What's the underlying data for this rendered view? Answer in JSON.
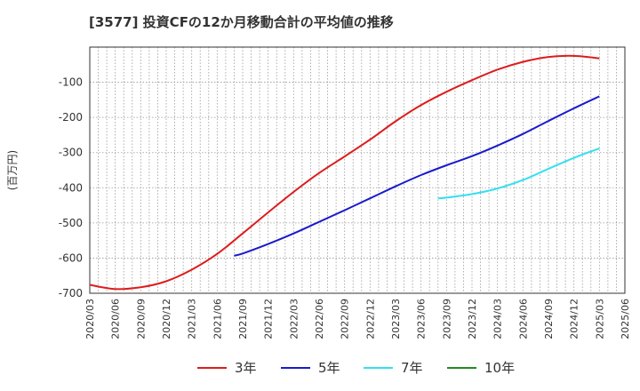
{
  "title": "[3577]  投資CFの12か月移動合計の平均値の推移",
  "chart_data": {
    "type": "line",
    "title": "[3577]  投資CFの12か月移動合計の平均値の推移",
    "ylabel": "(百万円)",
    "xlabel": "",
    "ylim": [
      -700,
      0
    ],
    "y_ticks": [
      -100,
      -200,
      -300,
      -400,
      -500,
      -600,
      -700
    ],
    "x_ticks": [
      "2020/03",
      "2020/06",
      "2020/09",
      "2020/12",
      "2021/03",
      "2021/06",
      "2021/09",
      "2021/12",
      "2022/03",
      "2022/06",
      "2022/09",
      "2022/12",
      "2023/03",
      "2023/06",
      "2023/09",
      "2023/12",
      "2024/03",
      "2024/06",
      "2024/09",
      "2024/12",
      "2025/03",
      "2025/06"
    ],
    "grid": true,
    "legend_position": "bottom",
    "series": [
      {
        "name": "3年",
        "color": "#dd1c1c",
        "x": [
          "2020/03",
          "2020/06",
          "2020/09",
          "2020/12",
          "2021/03",
          "2021/06",
          "2021/09",
          "2021/12",
          "2022/03",
          "2022/06",
          "2022/09",
          "2022/12",
          "2023/03",
          "2023/06",
          "2023/09",
          "2023/12",
          "2024/03",
          "2024/06",
          "2024/09",
          "2024/12",
          "2025/03"
        ],
        "values": [
          -676,
          -688,
          -683,
          -666,
          -633,
          -588,
          -530,
          -470,
          -412,
          -358,
          -311,
          -263,
          -211,
          -165,
          -127,
          -94,
          -64,
          -42,
          -28,
          -25,
          -32
        ]
      },
      {
        "name": "5年",
        "color": "#1a1acd",
        "x": [
          "2021/08",
          "2021/09",
          "2021/12",
          "2022/03",
          "2022/06",
          "2022/09",
          "2022/12",
          "2023/03",
          "2023/06",
          "2023/09",
          "2023/12",
          "2024/03",
          "2024/06",
          "2024/09",
          "2024/12",
          "2025/03"
        ],
        "values": [
          -593,
          -587,
          -560,
          -530,
          -497,
          -464,
          -430,
          -396,
          -364,
          -336,
          -310,
          -280,
          -247,
          -210,
          -174,
          -140
        ]
      },
      {
        "name": "7年",
        "color": "#33e0f0",
        "x": [
          "2023/08",
          "2023/09",
          "2023/12",
          "2024/03",
          "2024/06",
          "2024/09",
          "2024/12",
          "2025/03"
        ],
        "values": [
          -430,
          -428,
          -418,
          -402,
          -378,
          -346,
          -315,
          -288
        ]
      },
      {
        "name": "10年",
        "color": "#228b22",
        "x": [],
        "values": []
      }
    ]
  }
}
